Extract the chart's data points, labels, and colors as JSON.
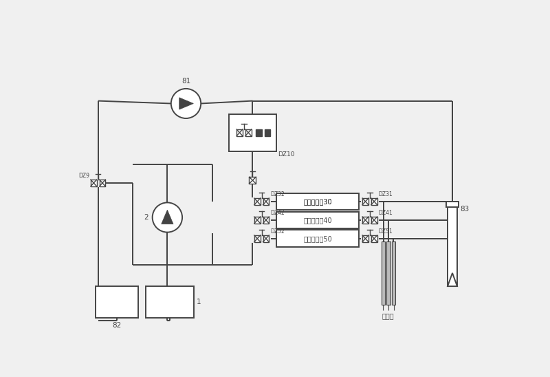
{
  "bg_color": "#f0f0f0",
  "line_color": "#444444",
  "lw": 1.4,
  "figsize": [
    8.0,
    5.48
  ],
  "dpi": 100,
  "labels": {
    "81": "81",
    "2": "2",
    "DZ9": "DZ9",
    "DZ10": "DZ10",
    "DZ32": "DZ32",
    "DZ42": "DZ42",
    "DZ52": "DZ52",
    "DZ31": "DZ31",
    "DZ41": "DZ41",
    "DZ51": "DZ51",
    "ch30": "计数池通道30",
    "ch40": "计数池通道40",
    "ch50": "计数池通道50",
    "82": "82",
    "1": "1",
    "needle": "取样针",
    "83": "83"
  }
}
